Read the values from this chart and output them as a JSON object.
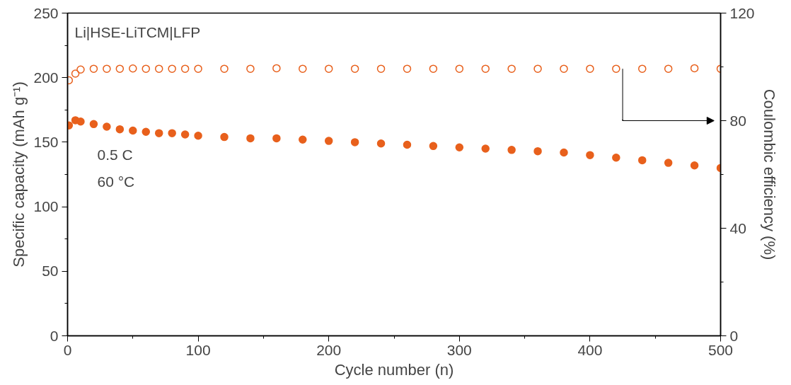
{
  "chart_data": {
    "type": "scatter",
    "xlabel": "Cycle number (n)",
    "ylabel": "Specific capacity (mAh g⁻¹)",
    "y2label": "Coulombic efficiency (%)",
    "annotations": [
      "Li|HSE-LiTCM|LFP",
      "0.5 C",
      "60 °C"
    ],
    "x": [
      1,
      6,
      10,
      20,
      30,
      40,
      50,
      60,
      70,
      80,
      90,
      100,
      120,
      140,
      160,
      180,
      200,
      220,
      240,
      260,
      280,
      300,
      320,
      340,
      360,
      380,
      400,
      420,
      440,
      460,
      480,
      500
    ],
    "series": [
      {
        "color": "#e8601c",
        "marker": "circle",
        "values": [
          163,
          167,
          166,
          164,
          162,
          160,
          159,
          158,
          157,
          157,
          156,
          155,
          154,
          153,
          153,
          152,
          151,
          150,
          149,
          148,
          147,
          146,
          145,
          144,
          143,
          142,
          140,
          138,
          136,
          134,
          132,
          130
        ]
      },
      {
        "color": "#e8601c",
        "marker": "circle",
        "axis": "y2",
        "values": [
          95,
          97.5,
          99,
          99.3,
          99.3,
          99.3,
          99.4,
          99.3,
          99.3,
          99.3,
          99.3,
          99.3,
          99.3,
          99.3,
          99.5,
          99.3,
          99.3,
          99.3,
          99.3,
          99.3,
          99.3,
          99.3,
          99.3,
          99.3,
          99.3,
          99.3,
          99.3,
          99.3,
          99.3,
          99.3,
          99.5,
          99.3
        ]
      }
    ],
    "xlim": [
      0,
      500
    ],
    "xticks": [
      0,
      100,
      200,
      300,
      400,
      500
    ],
    "ylim": [
      0,
      250
    ],
    "yticks": [
      0,
      50,
      100,
      150,
      200,
      250
    ],
    "y2lim": [
      0,
      120
    ],
    "y2ticks": [
      0,
      40,
      80,
      120
    ],
    "grid": false
  }
}
